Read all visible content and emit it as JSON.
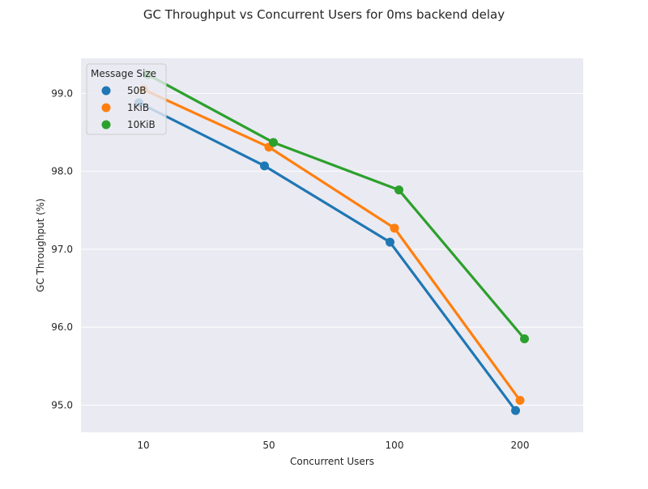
{
  "chart_data": {
    "type": "line",
    "title": "GC Throughput vs Concurrent Users for 0ms backend delay",
    "xlabel": "Concurrent Users",
    "ylabel": "GC Throughput (%)",
    "categories": [
      "10",
      "50",
      "100",
      "200"
    ],
    "ylim": [
      94.65,
      99.45
    ],
    "yticks": [
      95.0,
      96.0,
      97.0,
      98.0,
      99.0
    ],
    "ytick_labels": [
      "95.0",
      "96.0",
      "97.0",
      "98.0",
      "99.0"
    ],
    "grid": true,
    "legend": {
      "title": "Message Size",
      "placement": "top-left"
    },
    "series": [
      {
        "name": "50B",
        "color": "#1f77b4",
        "values": [
          98.88,
          98.07,
          97.09,
          94.93
        ]
      },
      {
        "name": "1KiB",
        "color": "#ff7f0e",
        "values": [
          99.05,
          98.31,
          97.27,
          95.06
        ]
      },
      {
        "name": "10KiB",
        "color": "#2ca02c",
        "values": [
          99.24,
          98.37,
          97.76,
          95.85
        ]
      }
    ]
  }
}
